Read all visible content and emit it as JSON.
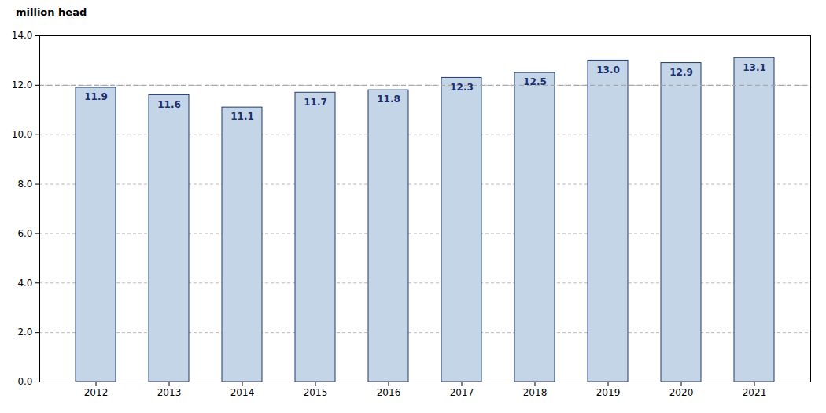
{
  "chart_data": {
    "type": "bar",
    "ylabel": "million head",
    "categories": [
      "2012",
      "2013",
      "2014",
      "2015",
      "2016",
      "2017",
      "2018",
      "2019",
      "2020",
      "2021"
    ],
    "values": [
      11.9,
      11.6,
      11.1,
      11.7,
      11.8,
      12.3,
      12.5,
      13.0,
      12.9,
      13.1
    ],
    "value_labels": [
      "11.9",
      "11.6",
      "11.1",
      "11.7",
      "11.8",
      "12.3",
      "12.5",
      "13.0",
      "12.9",
      "13.1"
    ],
    "data_labels": true,
    "color": "#c5d5e8",
    "reference_line": 12.0,
    "ylim": [
      0,
      14.0
    ],
    "yticks": [
      {
        "value": 0,
        "label": "0.0"
      },
      {
        "value": 2,
        "label": "2.0"
      },
      {
        "value": 4,
        "label": "4.0"
      },
      {
        "value": 6,
        "label": "6.0"
      },
      {
        "value": 8,
        "label": "8.0"
      },
      {
        "value": 10,
        "label": "10.0"
      },
      {
        "value": 12,
        "label": "12.0"
      },
      {
        "value": 14,
        "label": "14.0"
      }
    ],
    "grid": true
  }
}
